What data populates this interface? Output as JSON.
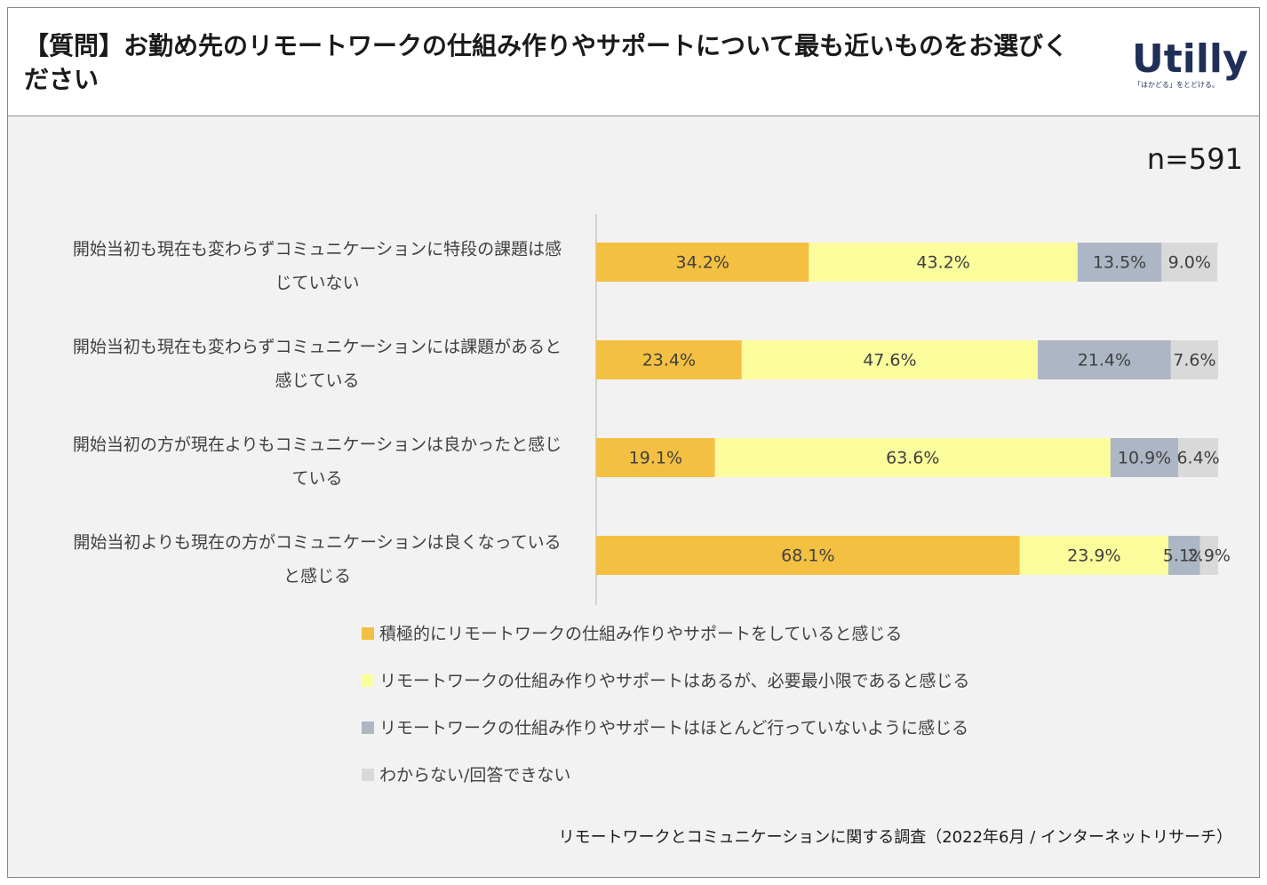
{
  "title": "【質問】お勤め先のリモートワークの仕組み作りやサポートについて最も近いものをお選びください",
  "logo": {
    "word": "Utilly",
    "tagline": "「はかどる」をとどける。"
  },
  "sample_size": "n=591",
  "footnote": "リモートワークとコミュニケーションに関する調査（2022年6月 / インターネットリサーチ）",
  "colors": [
    "#f4c042",
    "#fbfc9c",
    "#adb6c4",
    "#d9d9d9"
  ],
  "chart_data": {
    "type": "bar",
    "orientation": "horizontal",
    "stacked": "100%",
    "categories": [
      [
        "開始当初も現在も変わらずコミュニケーションに特段の課題は感",
        "じていない"
      ],
      [
        "開始当初も現在も変わらずコミュニケーションには課題があると",
        "感じている"
      ],
      [
        "開始当初の方が現在よりもコミュニケーションは良かったと感じ",
        "ている"
      ],
      [
        "開始当初よりも現在の方がコミュニケーションは良くなっている",
        "と感じる"
      ]
    ],
    "series": [
      {
        "name": "積極的にリモートワークの仕組み作りやサポートをしていると感じる",
        "values": [
          34.2,
          23.4,
          19.1,
          68.1
        ],
        "labels": [
          "34.2%",
          "23.4%",
          "19.1%",
          "68.1%"
        ]
      },
      {
        "name": "リモートワークの仕組み作りやサポートはあるが、必要最小限であると感じる",
        "values": [
          43.2,
          47.6,
          63.6,
          23.9
        ],
        "labels": [
          "43.2%",
          "47.6%",
          "63.6%",
          "23.9%"
        ]
      },
      {
        "name": "リモートワークの仕組み作りやサポートはほとんど行っていないように感じる",
        "values": [
          13.5,
          21.4,
          10.9,
          5.1
        ],
        "labels": [
          "13.5%",
          "21.4%",
          "10.9%",
          "5.1%"
        ]
      },
      {
        "name": "わからない/回答できない",
        "values": [
          9.0,
          7.6,
          6.4,
          2.9
        ],
        "labels": [
          "9.0%",
          "7.6%",
          "6.4%",
          "2.9%"
        ]
      }
    ],
    "xlim": [
      0,
      100
    ],
    "legend_position": "bottom"
  }
}
